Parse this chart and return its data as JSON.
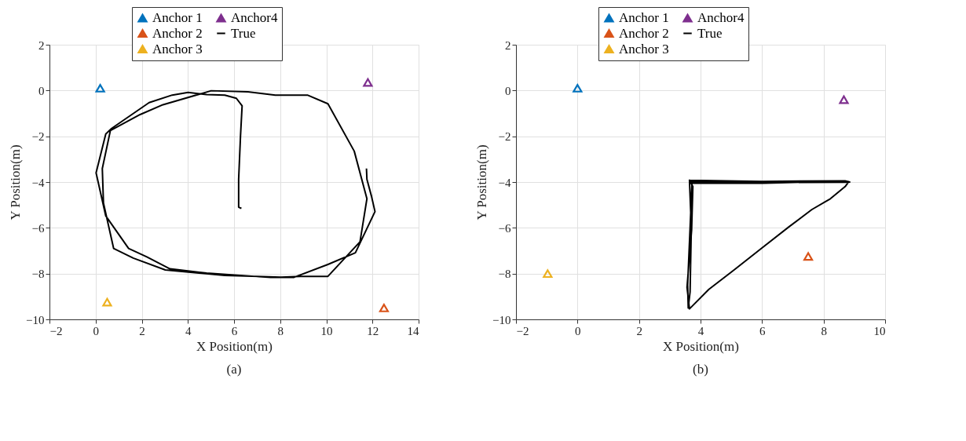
{
  "chart_data": [
    {
      "type": "scatter",
      "xlabel": "X Position(m)",
      "ylabel": "Y Position(m)",
      "xlim": [
        -2,
        14
      ],
      "ylim": [
        -10,
        2
      ],
      "xticks": [
        -2,
        0,
        2,
        4,
        6,
        8,
        10,
        12,
        14
      ],
      "yticks": [
        -10,
        -8,
        -6,
        -4,
        -2,
        0,
        2
      ],
      "grid": true,
      "legend": "top",
      "annotations": [
        "(a)"
      ],
      "series": [
        {
          "name": "Anchor 1",
          "marker": "triangle",
          "color": "#0072bd",
          "x": [
            0.2
          ],
          "values": [
            0.1
          ]
        },
        {
          "name": "Anchor 2",
          "marker": "triangle",
          "color": "#d95319",
          "x": [
            12.5
          ],
          "values": [
            -9.5
          ]
        },
        {
          "name": "Anchor 3",
          "marker": "triangle",
          "color": "#edb120",
          "x": [
            0.5
          ],
          "values": [
            -9.25
          ]
        },
        {
          "name": "Anchor4",
          "marker": "triangle",
          "color": "#7e2f8e",
          "x": [
            11.8
          ],
          "values": [
            0.35
          ]
        },
        {
          "name": "True",
          "type": "line",
          "line_style": "solid",
          "color": "#000000",
          "x": [
            6.32,
            6.2,
            6.2,
            6.28,
            6.35,
            6.1,
            5.6,
            4.81,
            4.01,
            3.32,
            2.32,
            0.69,
            0.44,
            0.02,
            0.44,
            1.43,
            2.22,
            3.22,
            4.81,
            7.59,
            8.88,
            10.07,
            11.46,
            11.76,
            11.21,
            10.07,
            9.18,
            7.79,
            6.6,
            5.01,
            2.92,
            1.93,
            0.64,
            0.29,
            0.34,
            0.78,
            1.63,
            3.02,
            5.6,
            8.58,
            10.07,
            11.26,
            12.11,
            11.96,
            11.76,
            11.74
          ],
          "values": [
            -5.15,
            -5.1,
            -3.88,
            -1.99,
            -0.67,
            -0.34,
            -0.2,
            -0.18,
            -0.08,
            -0.2,
            -0.53,
            -1.66,
            -1.9,
            -3.6,
            -5.48,
            -6.9,
            -7.27,
            -7.79,
            -7.98,
            -8.17,
            -8.12,
            -8.12,
            -6.61,
            -4.73,
            -2.65,
            -0.58,
            -0.2,
            -0.2,
            -0.06,
            -0.01,
            -0.62,
            -1.05,
            -1.75,
            -3.41,
            -4.92,
            -6.9,
            -7.32,
            -7.84,
            -8.08,
            -8.17,
            -7.6,
            -7.09,
            -5.29,
            -4.63,
            -3.88,
            -3.41
          ]
        }
      ]
    },
    {
      "type": "scatter",
      "xlabel": "X Position(m)",
      "ylabel": "Y Position(m)",
      "xlim": [
        -2,
        10
      ],
      "ylim": [
        -10,
        2
      ],
      "xticks": [
        -2,
        0,
        2,
        4,
        6,
        8,
        10
      ],
      "yticks": [
        -10,
        -8,
        -6,
        -4,
        -2,
        0,
        2
      ],
      "grid": true,
      "legend": "top",
      "annotations": [
        "(b)"
      ],
      "series": [
        {
          "name": "Anchor 1",
          "marker": "triangle",
          "color": "#0072bd",
          "x": [
            0
          ],
          "values": [
            0.1
          ]
        },
        {
          "name": "Anchor 2",
          "marker": "triangle",
          "color": "#d95319",
          "x": [
            7.5
          ],
          "values": [
            -7.25
          ]
        },
        {
          "name": "Anchor 3",
          "marker": "triangle",
          "color": "#edb120",
          "x": [
            -0.97
          ],
          "values": [
            -8.0
          ]
        },
        {
          "name": "Anchor4",
          "marker": "triangle",
          "color": "#7e2f8e",
          "x": [
            8.66
          ],
          "values": [
            -0.4
          ]
        },
        {
          "name": "True",
          "type": "line",
          "line_style": "solid",
          "color": "#000000",
          "x": [
            3.64,
            6.0,
            8.82,
            6.0,
            3.7,
            6.0,
            8.8,
            8.7,
            8.22,
            7.62,
            6.88,
            5.98,
            5.09,
            4.27,
            3.64,
            3.56,
            3.71,
            3.75,
            3.64,
            3.7,
            3.66,
            3.6,
            3.58,
            3.66,
            3.72,
            3.68,
            6.0,
            8.85,
            8.7,
            6.0,
            3.7
          ],
          "values": [
            -3.92,
            -3.97,
            -3.98,
            -4.05,
            -4.05,
            -4.0,
            -4.02,
            -4.2,
            -4.73,
            -5.2,
            -5.95,
            -6.9,
            -7.84,
            -8.69,
            -9.54,
            -8.6,
            -6.1,
            -4.2,
            -3.92,
            -6.0,
            -8.8,
            -9.5,
            -8.5,
            -6.0,
            -4.1,
            -3.95,
            -4.02,
            -4.0,
            -3.95,
            -3.97,
            -4.0
          ]
        }
      ]
    }
  ]
}
